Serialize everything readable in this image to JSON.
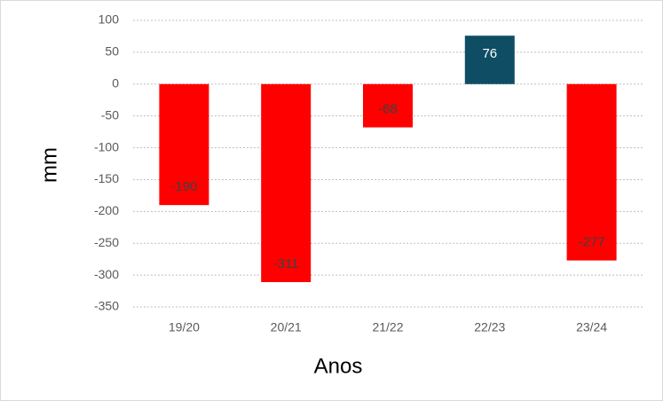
{
  "chart_data": {
    "type": "bar",
    "x_label": "Anos",
    "y_label": "mm",
    "categories": [
      "19/20",
      "20/21",
      "21/22",
      "22/23",
      "23/24"
    ],
    "values": [
      -190,
      -311,
      -68,
      76,
      -277
    ],
    "colors": [
      "#ff0000",
      "#ff0000",
      "#ff0000",
      "#0e4d64",
      "#ff0000"
    ],
    "value_label_colors": [
      "#404040",
      "#404040",
      "#404040",
      "#ffffff",
      "#404040"
    ],
    "ylim": [
      -350,
      100
    ],
    "yticks": [
      -350,
      -300,
      -250,
      -200,
      -150,
      -100,
      -50,
      0,
      50,
      100
    ],
    "grid": true
  }
}
